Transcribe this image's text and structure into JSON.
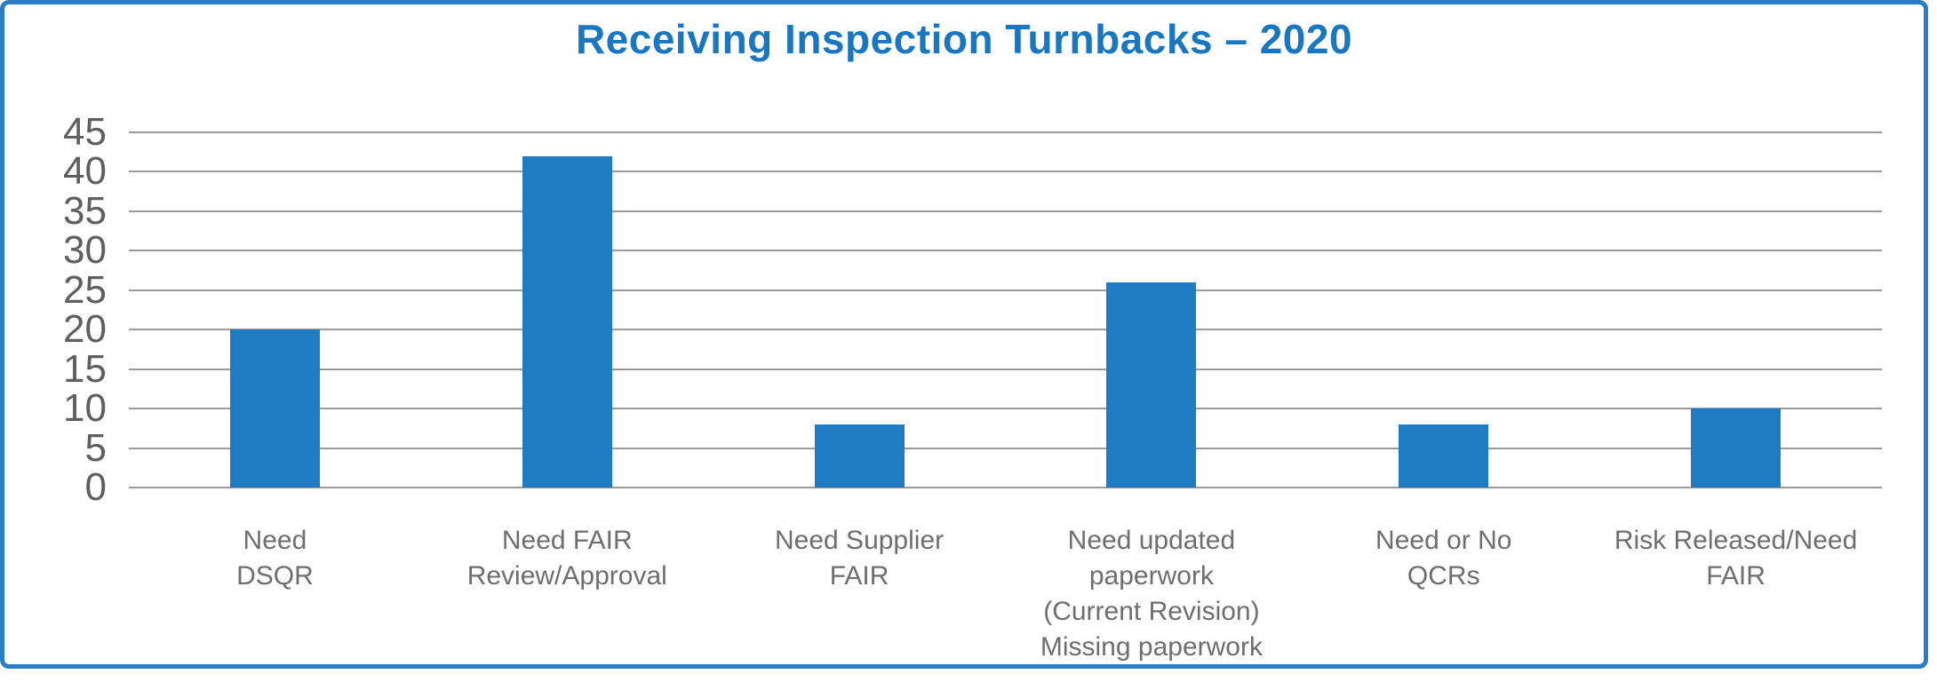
{
  "chart_data": {
    "type": "bar",
    "title": "Receiving Inspection Turnbacks – 2020",
    "categories": [
      "Need\nDSQR",
      "Need FAIR\nReview/Approval",
      "Need Supplier\nFAIR",
      "Need updated\npaperwork\n(Current Revision)\nMissing paperwork",
      "Need or No\nQCRs",
      "Risk Released/Need\nFAIR"
    ],
    "values": [
      20,
      42,
      8,
      26,
      8,
      10
    ],
    "xlabel": "",
    "ylabel": "",
    "ylim": [
      0,
      45
    ],
    "ytick_step": 5,
    "yticks": [
      45,
      40,
      35,
      30,
      25,
      20,
      15,
      10,
      5,
      0
    ],
    "grid": "horizontal",
    "legend": "none",
    "colors": {
      "bar": "#1f7bc2",
      "title": "#1b76c0",
      "frame_border": "#2b7ec5",
      "gridline": "#9b9b9b",
      "y_tick_text": "#5f5f5f",
      "x_label_text": "#6e6e6e",
      "background": "#ffffff"
    }
  }
}
